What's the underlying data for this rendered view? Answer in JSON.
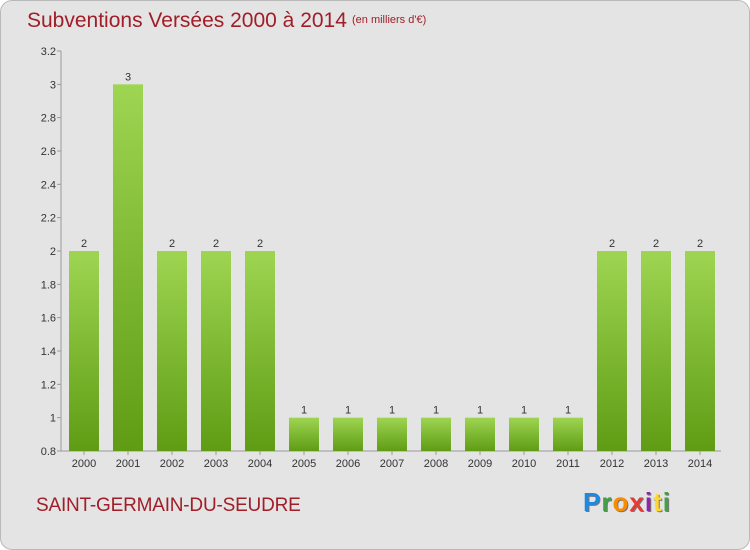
{
  "header": {
    "title": "Subventions Versées 2000 à 2014",
    "subtitle": "(en milliers d'€)"
  },
  "footer": {
    "commune": "SAINT-GERMAIN-DU-SEUDRE",
    "logo_letters": [
      "P",
      "r",
      "o",
      "x",
      "i",
      "t",
      "i"
    ],
    "logo_colors": [
      "#1e88e5",
      "#43a047",
      "#fb8c00",
      "#e53935",
      "#8e24aa",
      "#fdd835",
      "#43a047"
    ]
  },
  "colors": {
    "bar_top": "#9ed552",
    "bar_bottom": "#5f9c14",
    "label": "#333333",
    "accent": "#a11d27"
  },
  "chart_data": {
    "type": "bar",
    "title": "Subventions Versées 2000 à 2014",
    "subtitle": "(en milliers d'€)",
    "xlabel": "",
    "ylabel": "",
    "categories": [
      "2000",
      "2001",
      "2002",
      "2003",
      "2004",
      "2005",
      "2006",
      "2007",
      "2008",
      "2009",
      "2010",
      "2011",
      "2012",
      "2013",
      "2014"
    ],
    "values": [
      2,
      3,
      2,
      2,
      2,
      1,
      1,
      1,
      1,
      1,
      1,
      1,
      2,
      2,
      2
    ],
    "value_labels": [
      "2",
      "3",
      "2",
      "2",
      "2",
      "1",
      "1",
      "1",
      "1",
      "1",
      "1",
      "1",
      "2",
      "2",
      "2"
    ],
    "ylim": [
      0.8,
      3.2
    ],
    "yticks": [
      0.8,
      1,
      1.2,
      1.4,
      1.6,
      1.8,
      2,
      2.2,
      2.4,
      2.6,
      2.8,
      3,
      3.2
    ],
    "ytick_labels": [
      "0.8",
      "1",
      "1.2",
      "1.4",
      "1.6",
      "1.8",
      "2",
      "2.2",
      "2.4",
      "2.6",
      "2.8",
      "3",
      "3.2"
    ],
    "grid": false,
    "legend": "none"
  }
}
